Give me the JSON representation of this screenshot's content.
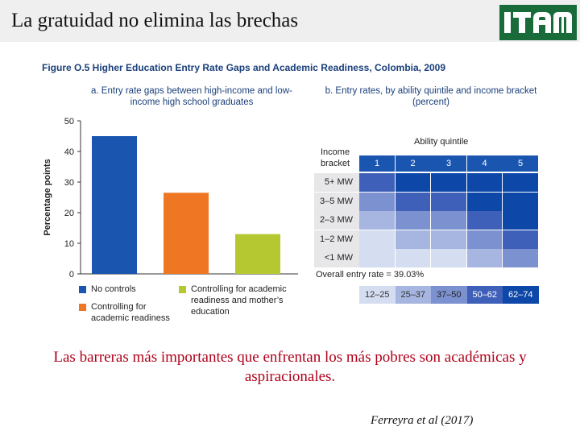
{
  "slide": {
    "title": "La gratuidad no elimina las brechas",
    "logo_text": "ITAM",
    "conclusion": "Las barreras más importantes que enfrentan los más pobres son académicas y aspiracionales.",
    "citation": "Ferreyra et al (2017)"
  },
  "figure": {
    "caption": "Figure O.5  Higher Education Entry Rate Gaps and Academic Readiness, Colombia, 2009",
    "panel_a_title": "a. Entry rate gaps between high-income and low-income high school graduates",
    "panel_b_title": "b. Entry rates, by ability quintile and income bracket (percent)"
  },
  "chart_data": [
    {
      "type": "bar",
      "title": "a. Entry rate gaps between high-income and low-income high school graduates",
      "ylabel": "Percentage points",
      "ylim": [
        0,
        50
      ],
      "yticks": [
        "0",
        "10",
        "20",
        "30",
        "40",
        "50"
      ],
      "categories": [
        "No controls",
        "Controlling for academic readiness",
        "Controlling for academic readiness and mother’s education"
      ],
      "values": [
        45,
        26.5,
        13
      ],
      "colors": [
        "#1a56b0",
        "#ef7622",
        "#b5c832"
      ],
      "legend": [
        {
          "label": "No controls",
          "color": "#1a56b0"
        },
        {
          "label": "Controlling for\nacademic readiness",
          "color": "#ef7622"
        },
        {
          "label": "Controlling for academic\nreadiness and mother’s\neducation",
          "color": "#b5c832"
        }
      ]
    },
    {
      "type": "heatmap",
      "title": "b. Entry rates, by ability quintile and income bracket (percent)",
      "xlabel": "Ability quintile",
      "ylabel": "Income bracket",
      "columns": [
        "1",
        "2",
        "3",
        "4",
        "5"
      ],
      "rows": [
        "5+ MW",
        "3–5 MW",
        "2–3 MW",
        "1–2 MW",
        "<1 MW"
      ],
      "bins": [
        [
          "50–62",
          "62–74",
          "62–74",
          "62–74",
          "62–74"
        ],
        [
          "37–50",
          "50–62",
          "50–62",
          "62–74",
          "62–74"
        ],
        [
          "25–37",
          "37–50",
          "37–50",
          "50–62",
          "62–74"
        ],
        [
          "12–25",
          "25–37",
          "25–37",
          "37–50",
          "50–62"
        ],
        [
          "12–25",
          "12–25",
          "12–25",
          "25–37",
          "37–50"
        ]
      ],
      "overall": "Overall entry rate = 39.03%",
      "scale": [
        {
          "label": "12–25",
          "color": "#d5ddf0",
          "text_color": "#333333"
        },
        {
          "label": "25–37",
          "color": "#a7b6e0",
          "text_color": "#333333"
        },
        {
          "label": "37–50",
          "color": "#7c91d0",
          "text_color": "#222222"
        },
        {
          "label": "50–62",
          "color": "#3f60b8",
          "text_color": "#ffffff"
        },
        {
          "label": "62–74",
          "color": "#0d47a8",
          "text_color": "#ffffff"
        }
      ]
    }
  ]
}
